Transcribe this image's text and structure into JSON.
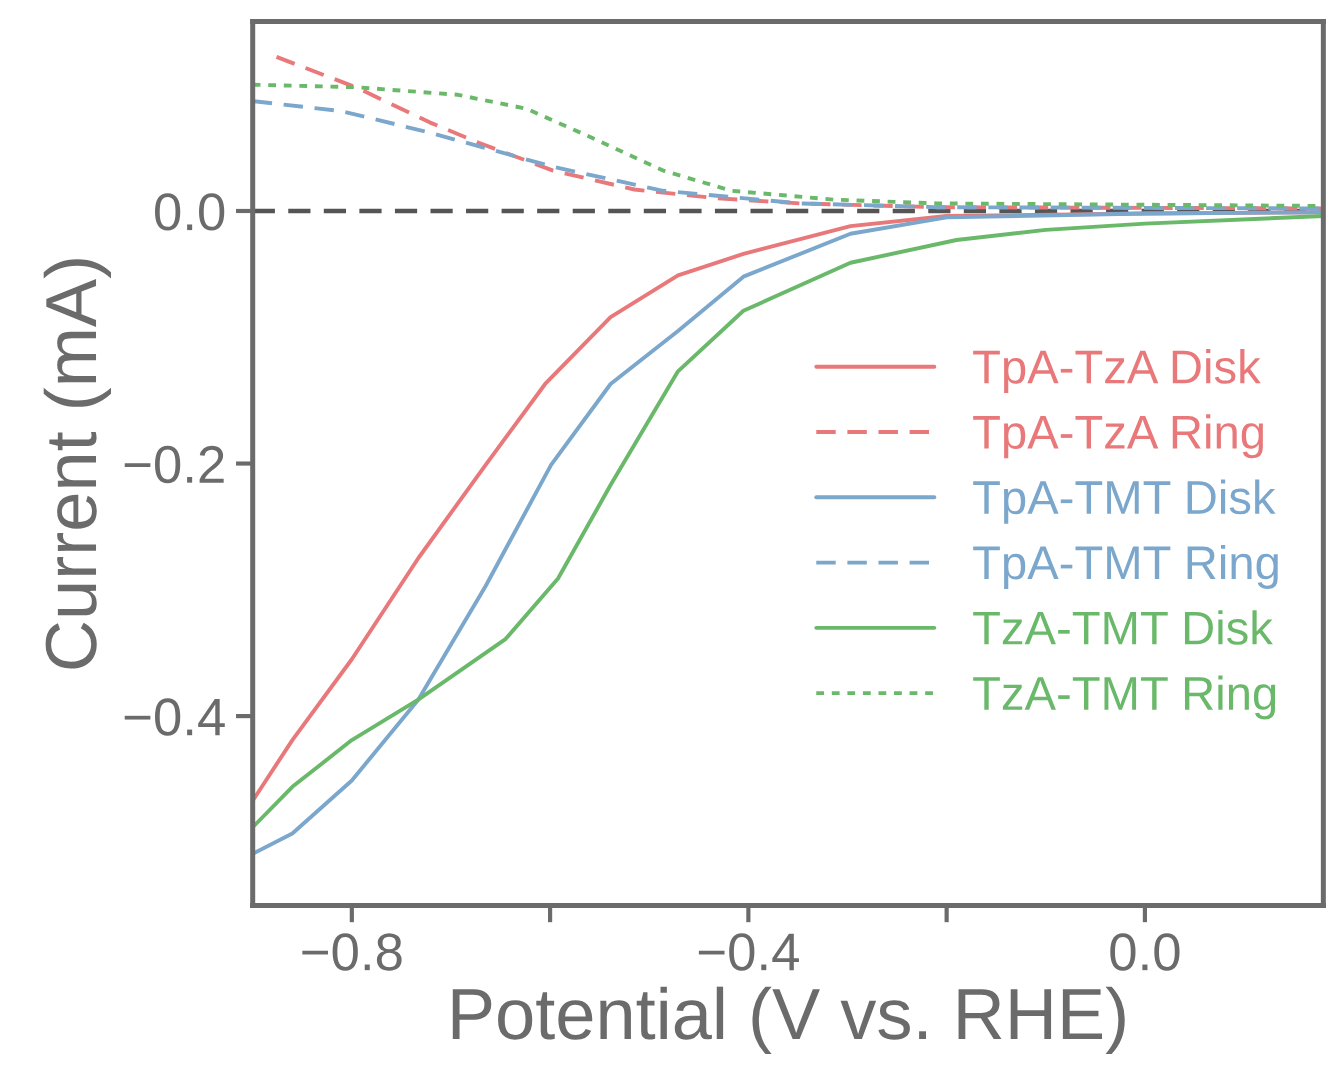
{
  "chart_data": {
    "type": "line",
    "xlabel": "Potential (V vs. RHE)",
    "ylabel": "Current (mA)",
    "xlim": [
      -0.9,
      0.18
    ],
    "ylim": [
      -0.55,
      0.15
    ],
    "xticks": [
      -0.8,
      {
        "value": -0.6,
        "label": null
      },
      -0.4,
      {
        "value": -0.2,
        "label": null
      },
      {
        "value": 0.0,
        "label": "0.0"
      }
    ],
    "yticks": [
      -0.4,
      -0.2,
      {
        "value": 0.0,
        "label": "0.0"
      }
    ],
    "grid": false,
    "legend": "right",
    "ref_lines": [
      {
        "axis": "y",
        "value": 0,
        "label": null,
        "color": "#555555",
        "line_style": "dashed"
      }
    ],
    "series": [
      {
        "name": "TpA-TzA Disk",
        "color": "#e8787a",
        "line_style": "solid",
        "x": [
          -0.9,
          -0.86,
          -0.8,
          -0.733,
          -0.665,
          -0.605,
          -0.539,
          -0.471,
          -0.405,
          -0.297,
          -0.2,
          0.0,
          0.18
        ],
        "values": [
          -0.467,
          -0.419,
          -0.355,
          -0.275,
          -0.201,
          -0.137,
          -0.084,
          -0.051,
          -0.034,
          -0.012,
          -0.004,
          -0.002,
          -0.001
        ]
      },
      {
        "name": "TpA-TzA Ring",
        "color": "#e8787a",
        "line_style": "dashed",
        "x": [
          -0.876,
          -0.796,
          -0.721,
          -0.672,
          -0.597,
          -0.515,
          -0.431,
          -0.348,
          -0.21,
          0.18
        ],
        "values": [
          0.122,
          0.098,
          0.07,
          0.054,
          0.032,
          0.017,
          0.01,
          0.006,
          0.003,
          0.002
        ]
      },
      {
        "name": "TpA-TMT Disk",
        "color": "#7ba7cc",
        "line_style": "solid",
        "x": [
          -0.9,
          -0.86,
          -0.8,
          -0.733,
          -0.665,
          -0.599,
          -0.539,
          -0.471,
          -0.405,
          -0.297,
          -0.2,
          0.0,
          0.18
        ],
        "values": [
          -0.509,
          -0.493,
          -0.451,
          -0.387,
          -0.297,
          -0.201,
          -0.137,
          -0.095,
          -0.052,
          -0.018,
          -0.005,
          -0.002,
          -0.001
        ]
      },
      {
        "name": "TpA-TMT Ring",
        "color": "#7ba7cc",
        "line_style": "dashed",
        "x": [
          -0.9,
          -0.81,
          -0.721,
          -0.597,
          -0.486,
          -0.348,
          -0.21,
          0.18
        ],
        "values": [
          0.087,
          0.079,
          0.062,
          0.035,
          0.016,
          0.006,
          0.003,
          0.002
        ]
      },
      {
        "name": "TzA-TMT Disk",
        "color": "#6ab86a",
        "line_style": "solid",
        "x": [
          -0.9,
          -0.86,
          -0.8,
          -0.733,
          -0.645,
          -0.592,
          -0.539,
          -0.471,
          -0.405,
          -0.297,
          -0.19,
          -0.1,
          0.0,
          0.18
        ],
        "values": [
          -0.488,
          -0.456,
          -0.419,
          -0.387,
          -0.339,
          -0.291,
          -0.217,
          -0.127,
          -0.079,
          -0.041,
          -0.023,
          -0.015,
          -0.01,
          -0.004
        ]
      },
      {
        "name": "TzA-TMT Ring",
        "color": "#6ab86a",
        "line_style": "dotted",
        "x": [
          -0.9,
          -0.796,
          -0.693,
          -0.624,
          -0.555,
          -0.486,
          -0.417,
          -0.314,
          -0.21,
          0.18
        ],
        "values": [
          0.1,
          0.098,
          0.092,
          0.081,
          0.057,
          0.032,
          0.016,
          0.009,
          0.006,
          0.004
        ]
      }
    ]
  }
}
